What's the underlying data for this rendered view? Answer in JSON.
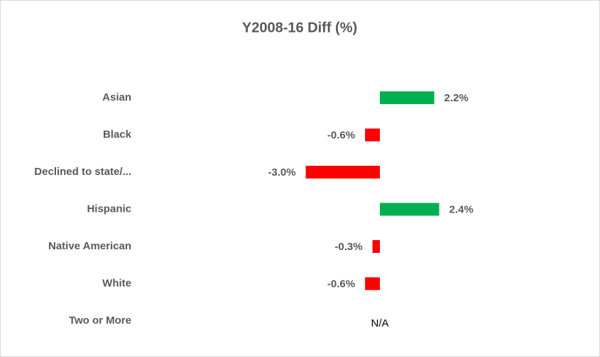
{
  "chart_data": {
    "type": "hbar",
    "title": "Y2008-16 Diff (%)",
    "categories": [
      "Asian",
      "Black",
      "Declined to state/...",
      "Hispanic",
      "Native American",
      "White",
      "Two or More"
    ],
    "values": [
      2.2,
      -0.6,
      -3.0,
      2.4,
      -0.3,
      -0.6,
      null
    ],
    "value_labels": [
      "2.2%",
      "-0.6%",
      "-3.0%",
      "2.4%",
      "-0.3%",
      "-0.6%",
      "N/A"
    ],
    "positive_color": "#00b050",
    "negative_color": "#ff0000"
  }
}
